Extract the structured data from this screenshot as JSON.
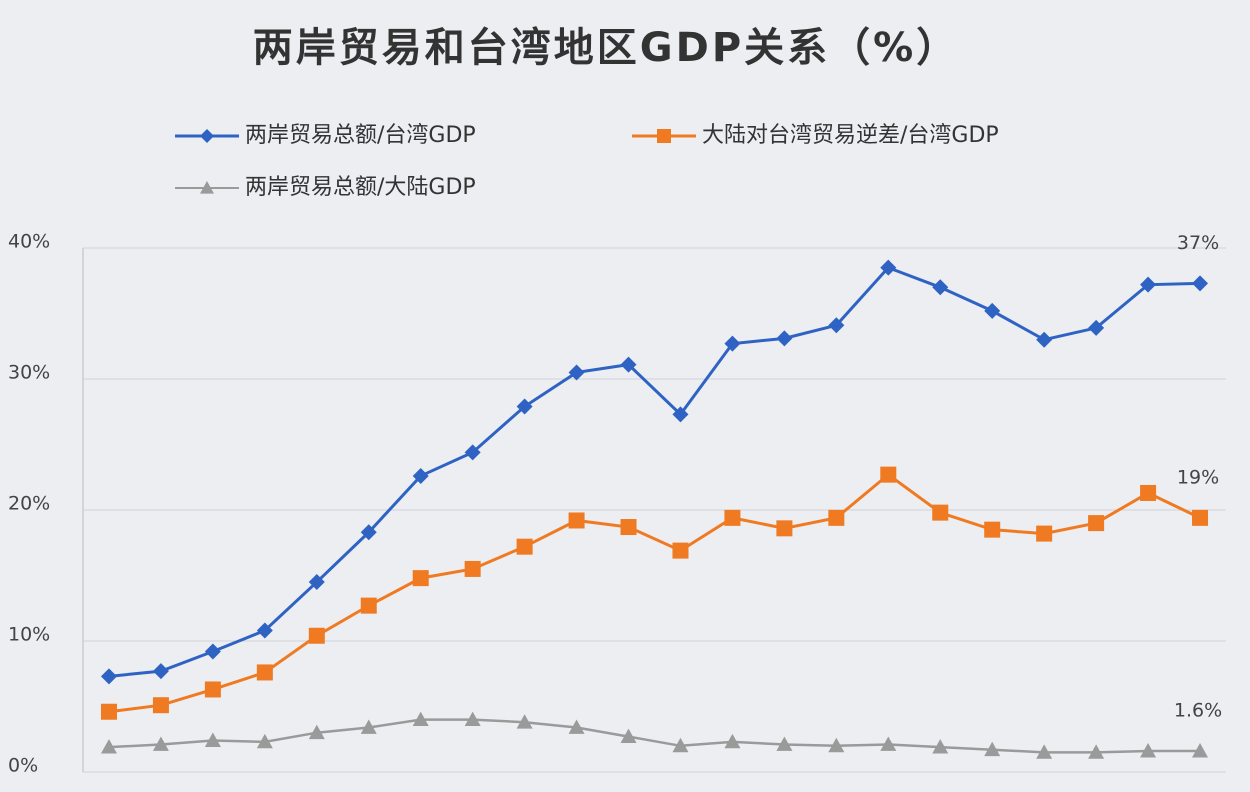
{
  "chart_data": {
    "type": "line",
    "title": "两岸贸易和台湾地区GDP关系（%）",
    "categories": [
      null,
      null,
      null,
      null,
      null,
      null,
      null,
      null,
      null,
      null,
      null,
      null,
      null,
      null,
      null,
      null,
      null,
      null,
      null,
      null,
      null,
      null
    ],
    "series": [
      {
        "name": "两岸贸易总额/台湾GDP",
        "color": "#2e63c4",
        "marker": "diamond",
        "values": [
          7.3,
          7.7,
          9.2,
          10.8,
          14.5,
          18.3,
          22.6,
          24.4,
          27.9,
          30.5,
          31.1,
          27.3,
          32.7,
          33.1,
          34.1,
          38.5,
          37.0,
          35.2,
          33.0,
          33.9,
          37.2,
          37.3
        ],
        "value_labels": [
          null,
          null,
          null,
          null,
          null,
          null,
          null,
          null,
          null,
          null,
          null,
          null,
          null,
          null,
          null,
          null,
          null,
          null,
          null,
          null,
          null,
          "37%"
        ]
      },
      {
        "name": "大陆对台湾贸易逆差/台湾GDP",
        "color": "#f07a22",
        "marker": "square",
        "values": [
          4.6,
          5.1,
          6.3,
          7.6,
          10.4,
          12.7,
          14.8,
          15.5,
          17.2,
          19.2,
          18.7,
          16.9,
          19.4,
          18.6,
          19.4,
          22.7,
          19.8,
          18.5,
          18.2,
          19.0,
          21.3,
          19.4
        ],
        "value_labels": [
          null,
          null,
          null,
          null,
          null,
          null,
          null,
          null,
          null,
          null,
          null,
          null,
          null,
          null,
          null,
          null,
          null,
          null,
          null,
          null,
          null,
          "19%"
        ]
      },
      {
        "name": "两岸贸易总额/大陆GDP",
        "color": "#9a9a9a",
        "marker": "triangle",
        "values": [
          1.9,
          2.1,
          2.4,
          2.3,
          3.0,
          3.4,
          4.0,
          4.0,
          3.8,
          3.4,
          2.7,
          2.0,
          2.3,
          2.1,
          2.0,
          2.1,
          1.9,
          1.7,
          1.5,
          1.5,
          1.6,
          1.6
        ],
        "value_labels": [
          null,
          null,
          null,
          null,
          null,
          null,
          null,
          null,
          null,
          null,
          null,
          null,
          null,
          null,
          null,
          null,
          null,
          null,
          null,
          null,
          null,
          "1.6%"
        ]
      }
    ],
    "ylim": [
      0,
      40
    ],
    "yticks": [
      {
        "value": 0,
        "label": "0%"
      },
      {
        "value": 10,
        "label": "10%"
      },
      {
        "value": 20,
        "label": "20%"
      },
      {
        "value": 30,
        "label": "30%"
      },
      {
        "value": 40,
        "label": "40%"
      }
    ],
    "grid": true
  }
}
